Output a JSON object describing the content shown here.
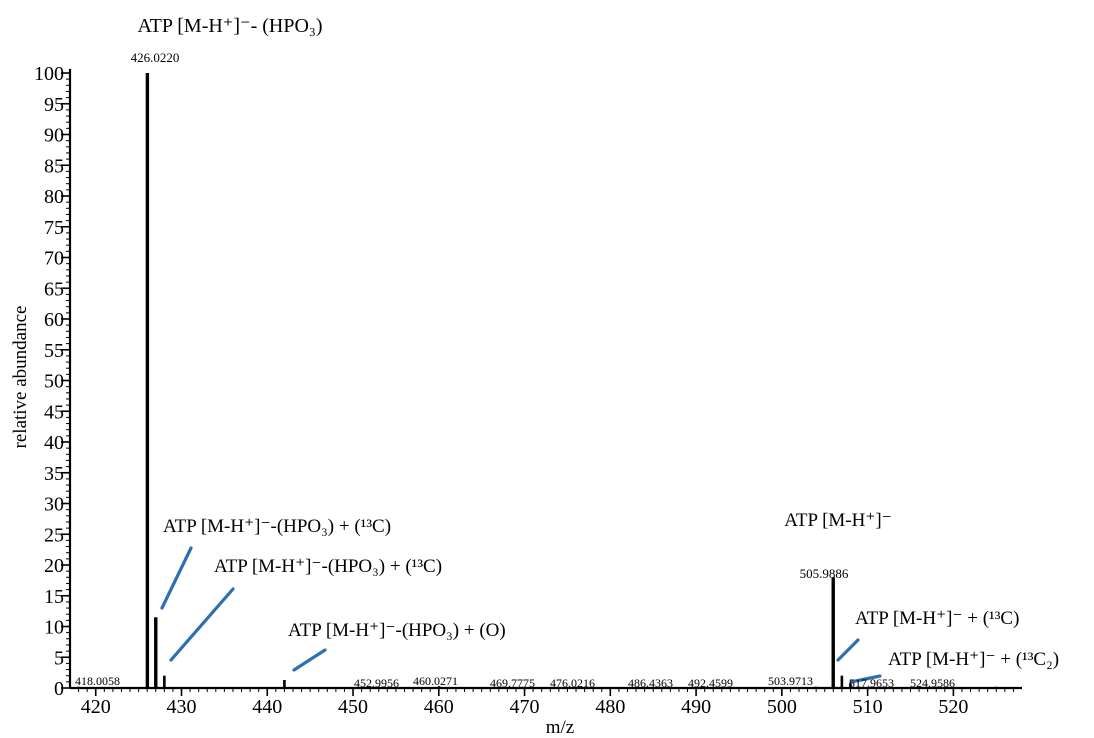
{
  "chart_data": {
    "type": "bar",
    "xlabel": "m/z",
    "ylabel": "relative abundance",
    "xlim": [
      417,
      528
    ],
    "ylim": [
      0,
      100
    ],
    "x_ticks": [
      420,
      430,
      440,
      450,
      460,
      470,
      480,
      490,
      500,
      510,
      520
    ],
    "y_ticks": [
      0,
      5,
      10,
      15,
      20,
      25,
      30,
      35,
      40,
      45,
      50,
      55,
      60,
      65,
      70,
      75,
      80,
      85,
      90,
      95,
      100
    ],
    "peaks": [
      {
        "mz": 426.022,
        "intensity": 100
      },
      {
        "mz": 427.0,
        "intensity": 11.5
      },
      {
        "mz": 428.0,
        "intensity": 2.0
      },
      {
        "mz": 442.0,
        "intensity": 1.3
      },
      {
        "mz": 505.9886,
        "intensity": 18
      },
      {
        "mz": 507.0,
        "intensity": 2.0
      },
      {
        "mz": 508.0,
        "intensity": 0.8
      },
      {
        "mz": 418.0058,
        "intensity": 0.2
      },
      {
        "mz": 452.9956,
        "intensity": 0.2
      },
      {
        "mz": 460.0271,
        "intensity": 0.3
      },
      {
        "mz": 469.7775,
        "intensity": 0.2
      },
      {
        "mz": 476.0216,
        "intensity": 0.2
      },
      {
        "mz": 486.4363,
        "intensity": 0.2
      },
      {
        "mz": 492.4599,
        "intensity": 0.2
      },
      {
        "mz": 503.9713,
        "intensity": 0.2
      },
      {
        "mz": 517.9653,
        "intensity": 0.2
      },
      {
        "mz": 524.9586,
        "intensity": 0.2
      }
    ],
    "peak_labels": [
      "426.0220",
      "505.9886",
      "418.0058",
      "452.9956",
      "460.0271",
      "469.7775",
      "476.0216",
      "486.4363",
      "492.4599",
      "503.9713",
      "517.9653",
      "524.9586"
    ],
    "annotations": [
      {
        "text": "ATP [M-H⁺]⁻- (HPO₃)",
        "peak_mz": 426.022
      },
      {
        "text": "ATP [M-H⁺]⁻-(HPO₃) + (¹³C)",
        "peak_mz": 427.0
      },
      {
        "text": "ATP [M-H⁺]⁻-(HPO₃) + (¹³C)",
        "peak_mz": 428.0
      },
      {
        "text": "ATP [M-H⁺]⁻-(HPO₃) + (O)",
        "peak_mz": 442.0
      },
      {
        "text": "ATP [M-H⁺]⁻",
        "peak_mz": 505.9886
      },
      {
        "text": "ATP [M-H⁺]⁻ + (¹³C)",
        "peak_mz": 507.0
      },
      {
        "text": "ATP [M-H⁺]⁻ + (¹³C₂)",
        "peak_mz": 508.0
      }
    ],
    "grid": false,
    "colors": {
      "peaks": "#000000",
      "leader_lines": "#2e6fb0"
    }
  }
}
